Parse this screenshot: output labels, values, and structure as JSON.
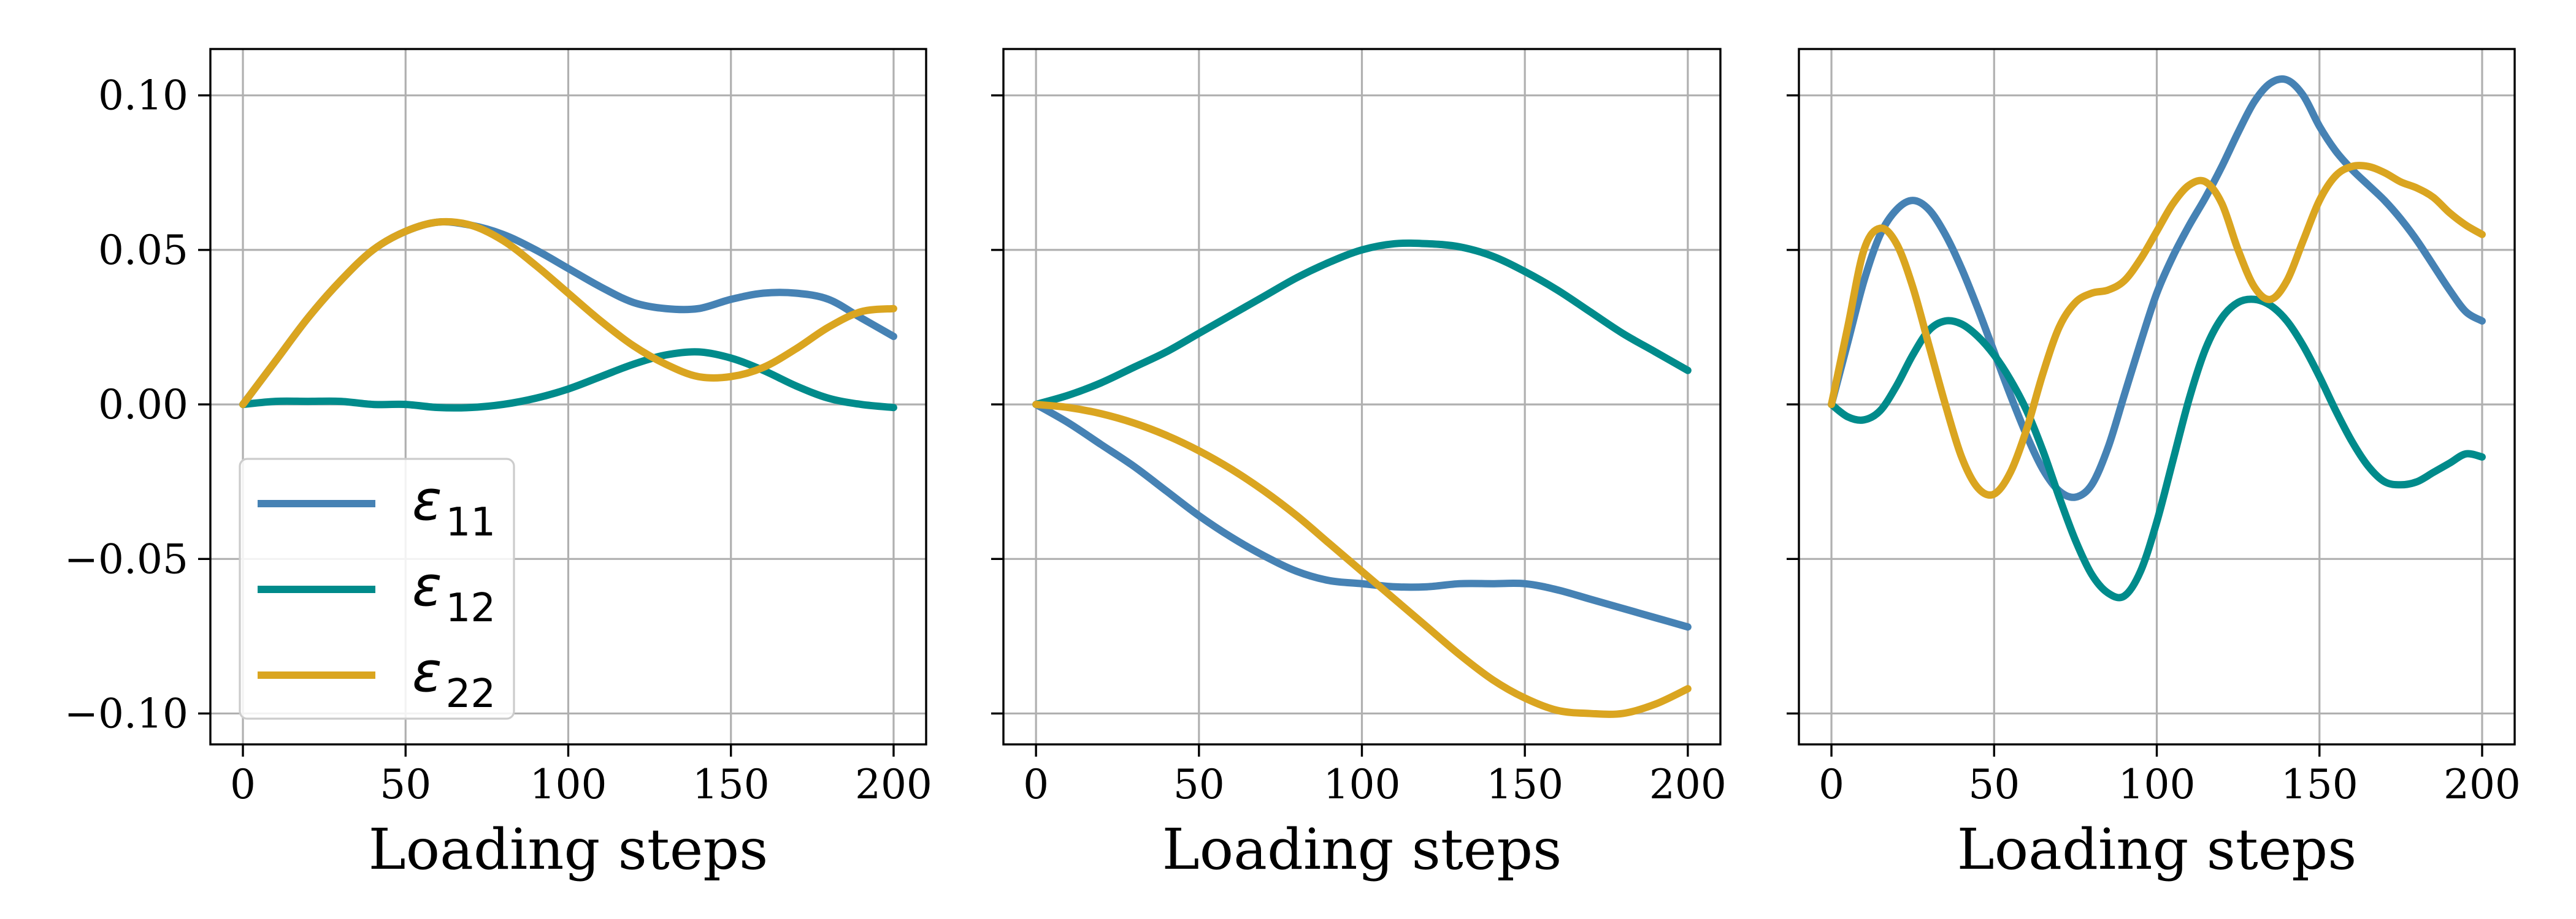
{
  "chart_data": [
    {
      "type": "line",
      "xlabel": "Loading steps",
      "ylabel": "",
      "xlim": [
        -10,
        210
      ],
      "ylim": [
        -0.11,
        0.115
      ],
      "xticks": [
        0,
        50,
        100,
        150,
        200
      ],
      "yticks": [
        0.1,
        0.05,
        0.0,
        -0.05,
        -0.1
      ],
      "ytick_labels": [
        "0.10",
        "0.05",
        "0.00",
        "−0.05",
        "−0.10"
      ],
      "show_ytick_labels": true,
      "grid": true,
      "legend": "lower-left",
      "series": [
        {
          "name": "ε11",
          "label_main": "ε",
          "label_sub": "11",
          "color": "#4682b4",
          "x": [
            0,
            10,
            20,
            30,
            40,
            50,
            60,
            70,
            80,
            90,
            100,
            110,
            120,
            130,
            140,
            150,
            160,
            170,
            180,
            190,
            200
          ],
          "y": [
            0.0,
            0.014,
            0.028,
            0.04,
            0.05,
            0.056,
            0.059,
            0.058,
            0.055,
            0.05,
            0.044,
            0.038,
            0.033,
            0.031,
            0.031,
            0.034,
            0.036,
            0.036,
            0.034,
            0.028,
            0.022
          ]
        },
        {
          "name": "ε12",
          "label_main": "ε",
          "label_sub": "12",
          "color": "#008b8b",
          "x": [
            0,
            10,
            20,
            30,
            40,
            50,
            60,
            70,
            80,
            90,
            100,
            110,
            120,
            130,
            140,
            150,
            160,
            170,
            180,
            190,
            200
          ],
          "y": [
            0.0,
            0.001,
            0.001,
            0.001,
            0.0,
            0.0,
            -0.001,
            -0.001,
            0.0,
            0.002,
            0.005,
            0.009,
            0.013,
            0.016,
            0.017,
            0.015,
            0.011,
            0.006,
            0.002,
            0.0,
            -0.001
          ]
        },
        {
          "name": "ε22",
          "label_main": "ε",
          "label_sub": "22",
          "color": "#daa520",
          "x": [
            0,
            10,
            20,
            30,
            40,
            50,
            60,
            70,
            80,
            90,
            100,
            110,
            120,
            130,
            140,
            150,
            160,
            170,
            180,
            190,
            200
          ],
          "y": [
            0.0,
            0.014,
            0.028,
            0.04,
            0.05,
            0.056,
            0.059,
            0.058,
            0.053,
            0.045,
            0.036,
            0.027,
            0.019,
            0.013,
            0.009,
            0.009,
            0.012,
            0.018,
            0.025,
            0.03,
            0.031
          ]
        }
      ]
    },
    {
      "type": "line",
      "xlabel": "Loading steps",
      "ylabel": "",
      "xlim": [
        -10,
        210
      ],
      "ylim": [
        -0.11,
        0.115
      ],
      "xticks": [
        0,
        50,
        100,
        150,
        200
      ],
      "yticks": [
        0.1,
        0.05,
        0.0,
        -0.05,
        -0.1
      ],
      "show_ytick_labels": false,
      "grid": true,
      "series": [
        {
          "name": "ε11",
          "color": "#4682b4",
          "x": [
            0,
            10,
            20,
            30,
            40,
            50,
            60,
            70,
            80,
            90,
            100,
            110,
            120,
            130,
            140,
            150,
            160,
            170,
            180,
            190,
            200
          ],
          "y": [
            0.0,
            -0.006,
            -0.013,
            -0.02,
            -0.028,
            -0.036,
            -0.043,
            -0.049,
            -0.054,
            -0.057,
            -0.058,
            -0.059,
            -0.059,
            -0.058,
            -0.058,
            -0.058,
            -0.06,
            -0.063,
            -0.066,
            -0.069,
            -0.072
          ]
        },
        {
          "name": "ε12",
          "color": "#008b8b",
          "x": [
            0,
            10,
            20,
            30,
            40,
            50,
            60,
            70,
            80,
            90,
            100,
            110,
            120,
            130,
            140,
            150,
            160,
            170,
            180,
            190,
            200
          ],
          "y": [
            0.0,
            0.003,
            0.007,
            0.012,
            0.017,
            0.023,
            0.029,
            0.035,
            0.041,
            0.046,
            0.05,
            0.052,
            0.052,
            0.051,
            0.048,
            0.043,
            0.037,
            0.03,
            0.023,
            0.017,
            0.011
          ]
        },
        {
          "name": "ε22",
          "color": "#daa520",
          "x": [
            0,
            10,
            20,
            30,
            40,
            50,
            60,
            70,
            80,
            90,
            100,
            110,
            120,
            130,
            140,
            150,
            160,
            170,
            180,
            190,
            200
          ],
          "y": [
            0.0,
            -0.001,
            -0.003,
            -0.006,
            -0.01,
            -0.015,
            -0.021,
            -0.028,
            -0.036,
            -0.045,
            -0.054,
            -0.063,
            -0.072,
            -0.081,
            -0.089,
            -0.095,
            -0.099,
            -0.1,
            -0.1,
            -0.097,
            -0.092
          ]
        }
      ]
    },
    {
      "type": "line",
      "xlabel": "Loading steps",
      "ylabel": "",
      "xlim": [
        -10,
        210
      ],
      "ylim": [
        -0.11,
        0.115
      ],
      "xticks": [
        0,
        50,
        100,
        150,
        200
      ],
      "yticks": [
        0.1,
        0.05,
        0.0,
        -0.05,
        -0.1
      ],
      "show_ytick_labels": false,
      "grid": true,
      "series": [
        {
          "name": "ε11",
          "color": "#4682b4",
          "x": [
            0,
            5,
            10,
            15,
            20,
            25,
            30,
            35,
            40,
            45,
            50,
            55,
            60,
            65,
            70,
            75,
            80,
            85,
            90,
            95,
            100,
            105,
            110,
            115,
            120,
            125,
            130,
            135,
            140,
            145,
            150,
            155,
            160,
            165,
            170,
            175,
            180,
            185,
            190,
            195,
            200
          ],
          "y": [
            0.0,
            0.02,
            0.04,
            0.055,
            0.063,
            0.066,
            0.063,
            0.055,
            0.044,
            0.031,
            0.017,
            0.003,
            -0.01,
            -0.021,
            -0.028,
            -0.03,
            -0.026,
            -0.014,
            0.003,
            0.02,
            0.036,
            0.048,
            0.058,
            0.067,
            0.077,
            0.088,
            0.098,
            0.104,
            0.105,
            0.1,
            0.09,
            0.082,
            0.076,
            0.071,
            0.066,
            0.06,
            0.053,
            0.045,
            0.037,
            0.03,
            0.027
          ]
        },
        {
          "name": "ε12",
          "color": "#008b8b",
          "x": [
            0,
            5,
            10,
            15,
            20,
            25,
            30,
            35,
            40,
            45,
            50,
            55,
            60,
            65,
            70,
            75,
            80,
            85,
            90,
            95,
            100,
            105,
            110,
            115,
            120,
            125,
            130,
            135,
            140,
            145,
            150,
            155,
            160,
            165,
            170,
            175,
            180,
            185,
            190,
            195,
            200
          ],
          "y": [
            0.0,
            -0.004,
            -0.005,
            -0.002,
            0.006,
            0.016,
            0.024,
            0.027,
            0.026,
            0.022,
            0.016,
            0.008,
            -0.002,
            -0.015,
            -0.03,
            -0.044,
            -0.055,
            -0.061,
            -0.062,
            -0.054,
            -0.038,
            -0.018,
            0.002,
            0.018,
            0.028,
            0.033,
            0.034,
            0.032,
            0.027,
            0.019,
            0.009,
            -0.002,
            -0.012,
            -0.02,
            -0.025,
            -0.026,
            -0.025,
            -0.022,
            -0.019,
            -0.016,
            -0.017
          ]
        },
        {
          "name": "ε22",
          "color": "#daa520",
          "x": [
            0,
            5,
            10,
            15,
            20,
            25,
            30,
            35,
            40,
            45,
            50,
            55,
            60,
            65,
            70,
            75,
            80,
            85,
            90,
            95,
            100,
            105,
            110,
            115,
            120,
            125,
            130,
            135,
            140,
            145,
            150,
            155,
            160,
            165,
            170,
            175,
            180,
            185,
            190,
            195,
            200
          ],
          "y": [
            0.0,
            0.025,
            0.05,
            0.057,
            0.052,
            0.038,
            0.019,
            0.0,
            -0.017,
            -0.027,
            -0.029,
            -0.022,
            -0.008,
            0.01,
            0.025,
            0.033,
            0.036,
            0.037,
            0.04,
            0.047,
            0.056,
            0.065,
            0.071,
            0.072,
            0.065,
            0.05,
            0.038,
            0.034,
            0.04,
            0.053,
            0.066,
            0.074,
            0.077,
            0.077,
            0.075,
            0.072,
            0.07,
            0.067,
            0.062,
            0.058,
            0.055
          ]
        }
      ]
    }
  ]
}
